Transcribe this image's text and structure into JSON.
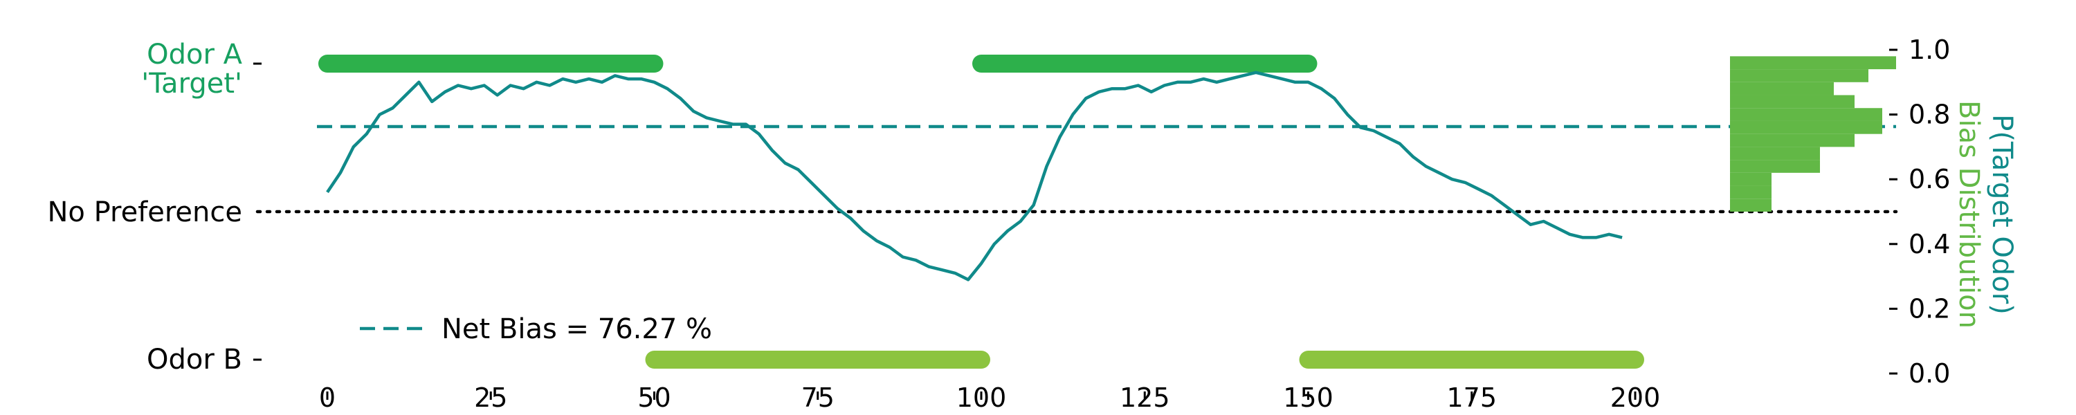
{
  "chart_data": {
    "type": "line",
    "colors": {
      "trace": "#108a8a",
      "odor_a": "#2db04b",
      "odor_b": "#8cc43f",
      "histogram": "#62b846",
      "odor_a_label": "#17a060",
      "axis": "#000000"
    },
    "y_labels": {
      "odor_a_line1": "Odor A",
      "odor_a_line2": "'Target'",
      "no_preference": "No Preference",
      "odor_b": "Odor B"
    },
    "right_axis": {
      "label_line1": "P(Target Odor)",
      "label_line2": "Bias Distribution",
      "ticks": [
        "0.0",
        "0.2",
        "0.4",
        "0.6",
        "0.8",
        "1.0"
      ],
      "ylim": [
        0,
        1
      ]
    },
    "x_axis": {
      "ticks": [
        "0",
        "25",
        "50",
        "75",
        "100",
        "125",
        "150",
        "175",
        "200"
      ],
      "xlim": [
        0,
        200
      ]
    },
    "legend": {
      "label": "Net Bias = 76.27 %",
      "placement": "lower-left"
    },
    "net_bias": 0.7627,
    "no_preference_level": 0.5,
    "odor_a_periods": [
      [
        0,
        50
      ],
      [
        100,
        150
      ]
    ],
    "odor_b_periods": [
      [
        50,
        100
      ],
      [
        150,
        200
      ]
    ],
    "series": [
      {
        "x": [
          0,
          2,
          4,
          6,
          8,
          10,
          12,
          14,
          16,
          18,
          20,
          22,
          24,
          26,
          28,
          30,
          32,
          34,
          36,
          38,
          40,
          42,
          44,
          46,
          48,
          50,
          52,
          54,
          56,
          58,
          60,
          62,
          64,
          66,
          68,
          70,
          72,
          74,
          76,
          78,
          80,
          82,
          84,
          86,
          88,
          90,
          92,
          94,
          96,
          98,
          100,
          102,
          104,
          106,
          108,
          110,
          112,
          114,
          116,
          118,
          120,
          122,
          124,
          126,
          128,
          130,
          132,
          134,
          136,
          138,
          140,
          142,
          144,
          146,
          148,
          150,
          152,
          154,
          156,
          158,
          160,
          162,
          164,
          166,
          168,
          170,
          172,
          174,
          176,
          178,
          180,
          182,
          184,
          186,
          188,
          190,
          192,
          194,
          196,
          198
        ],
        "y": [
          0.56,
          0.62,
          0.7,
          0.74,
          0.8,
          0.82,
          0.86,
          0.9,
          0.84,
          0.87,
          0.89,
          0.88,
          0.89,
          0.86,
          0.89,
          0.88,
          0.9,
          0.89,
          0.91,
          0.9,
          0.91,
          0.9,
          0.92,
          0.91,
          0.91,
          0.9,
          0.88,
          0.85,
          0.81,
          0.79,
          0.78,
          0.77,
          0.77,
          0.74,
          0.69,
          0.65,
          0.63,
          0.59,
          0.55,
          0.51,
          0.48,
          0.44,
          0.41,
          0.39,
          0.36,
          0.35,
          0.33,
          0.32,
          0.31,
          0.29,
          0.34,
          0.4,
          0.44,
          0.47,
          0.52,
          0.64,
          0.73,
          0.8,
          0.85,
          0.87,
          0.88,
          0.88,
          0.89,
          0.87,
          0.89,
          0.9,
          0.9,
          0.91,
          0.9,
          0.91,
          0.92,
          0.93,
          0.92,
          0.91,
          0.9,
          0.9,
          0.88,
          0.85,
          0.8,
          0.76,
          0.75,
          0.73,
          0.71,
          0.67,
          0.64,
          0.62,
          0.6,
          0.59,
          0.57,
          0.55,
          0.52,
          0.49,
          0.46,
          0.47,
          0.45,
          0.43,
          0.42,
          0.42,
          0.43,
          0.42
        ]
      }
    ],
    "histogram": {
      "bin_edges": [
        0.5,
        0.54,
        0.58,
        0.62,
        0.66,
        0.7,
        0.74,
        0.78,
        0.82,
        0.86,
        0.9,
        0.94,
        0.98
      ],
      "counts": [
        6,
        6,
        6,
        13,
        13,
        18,
        22,
        22,
        18,
        15,
        20,
        24
      ],
      "count_max": 24
    }
  }
}
